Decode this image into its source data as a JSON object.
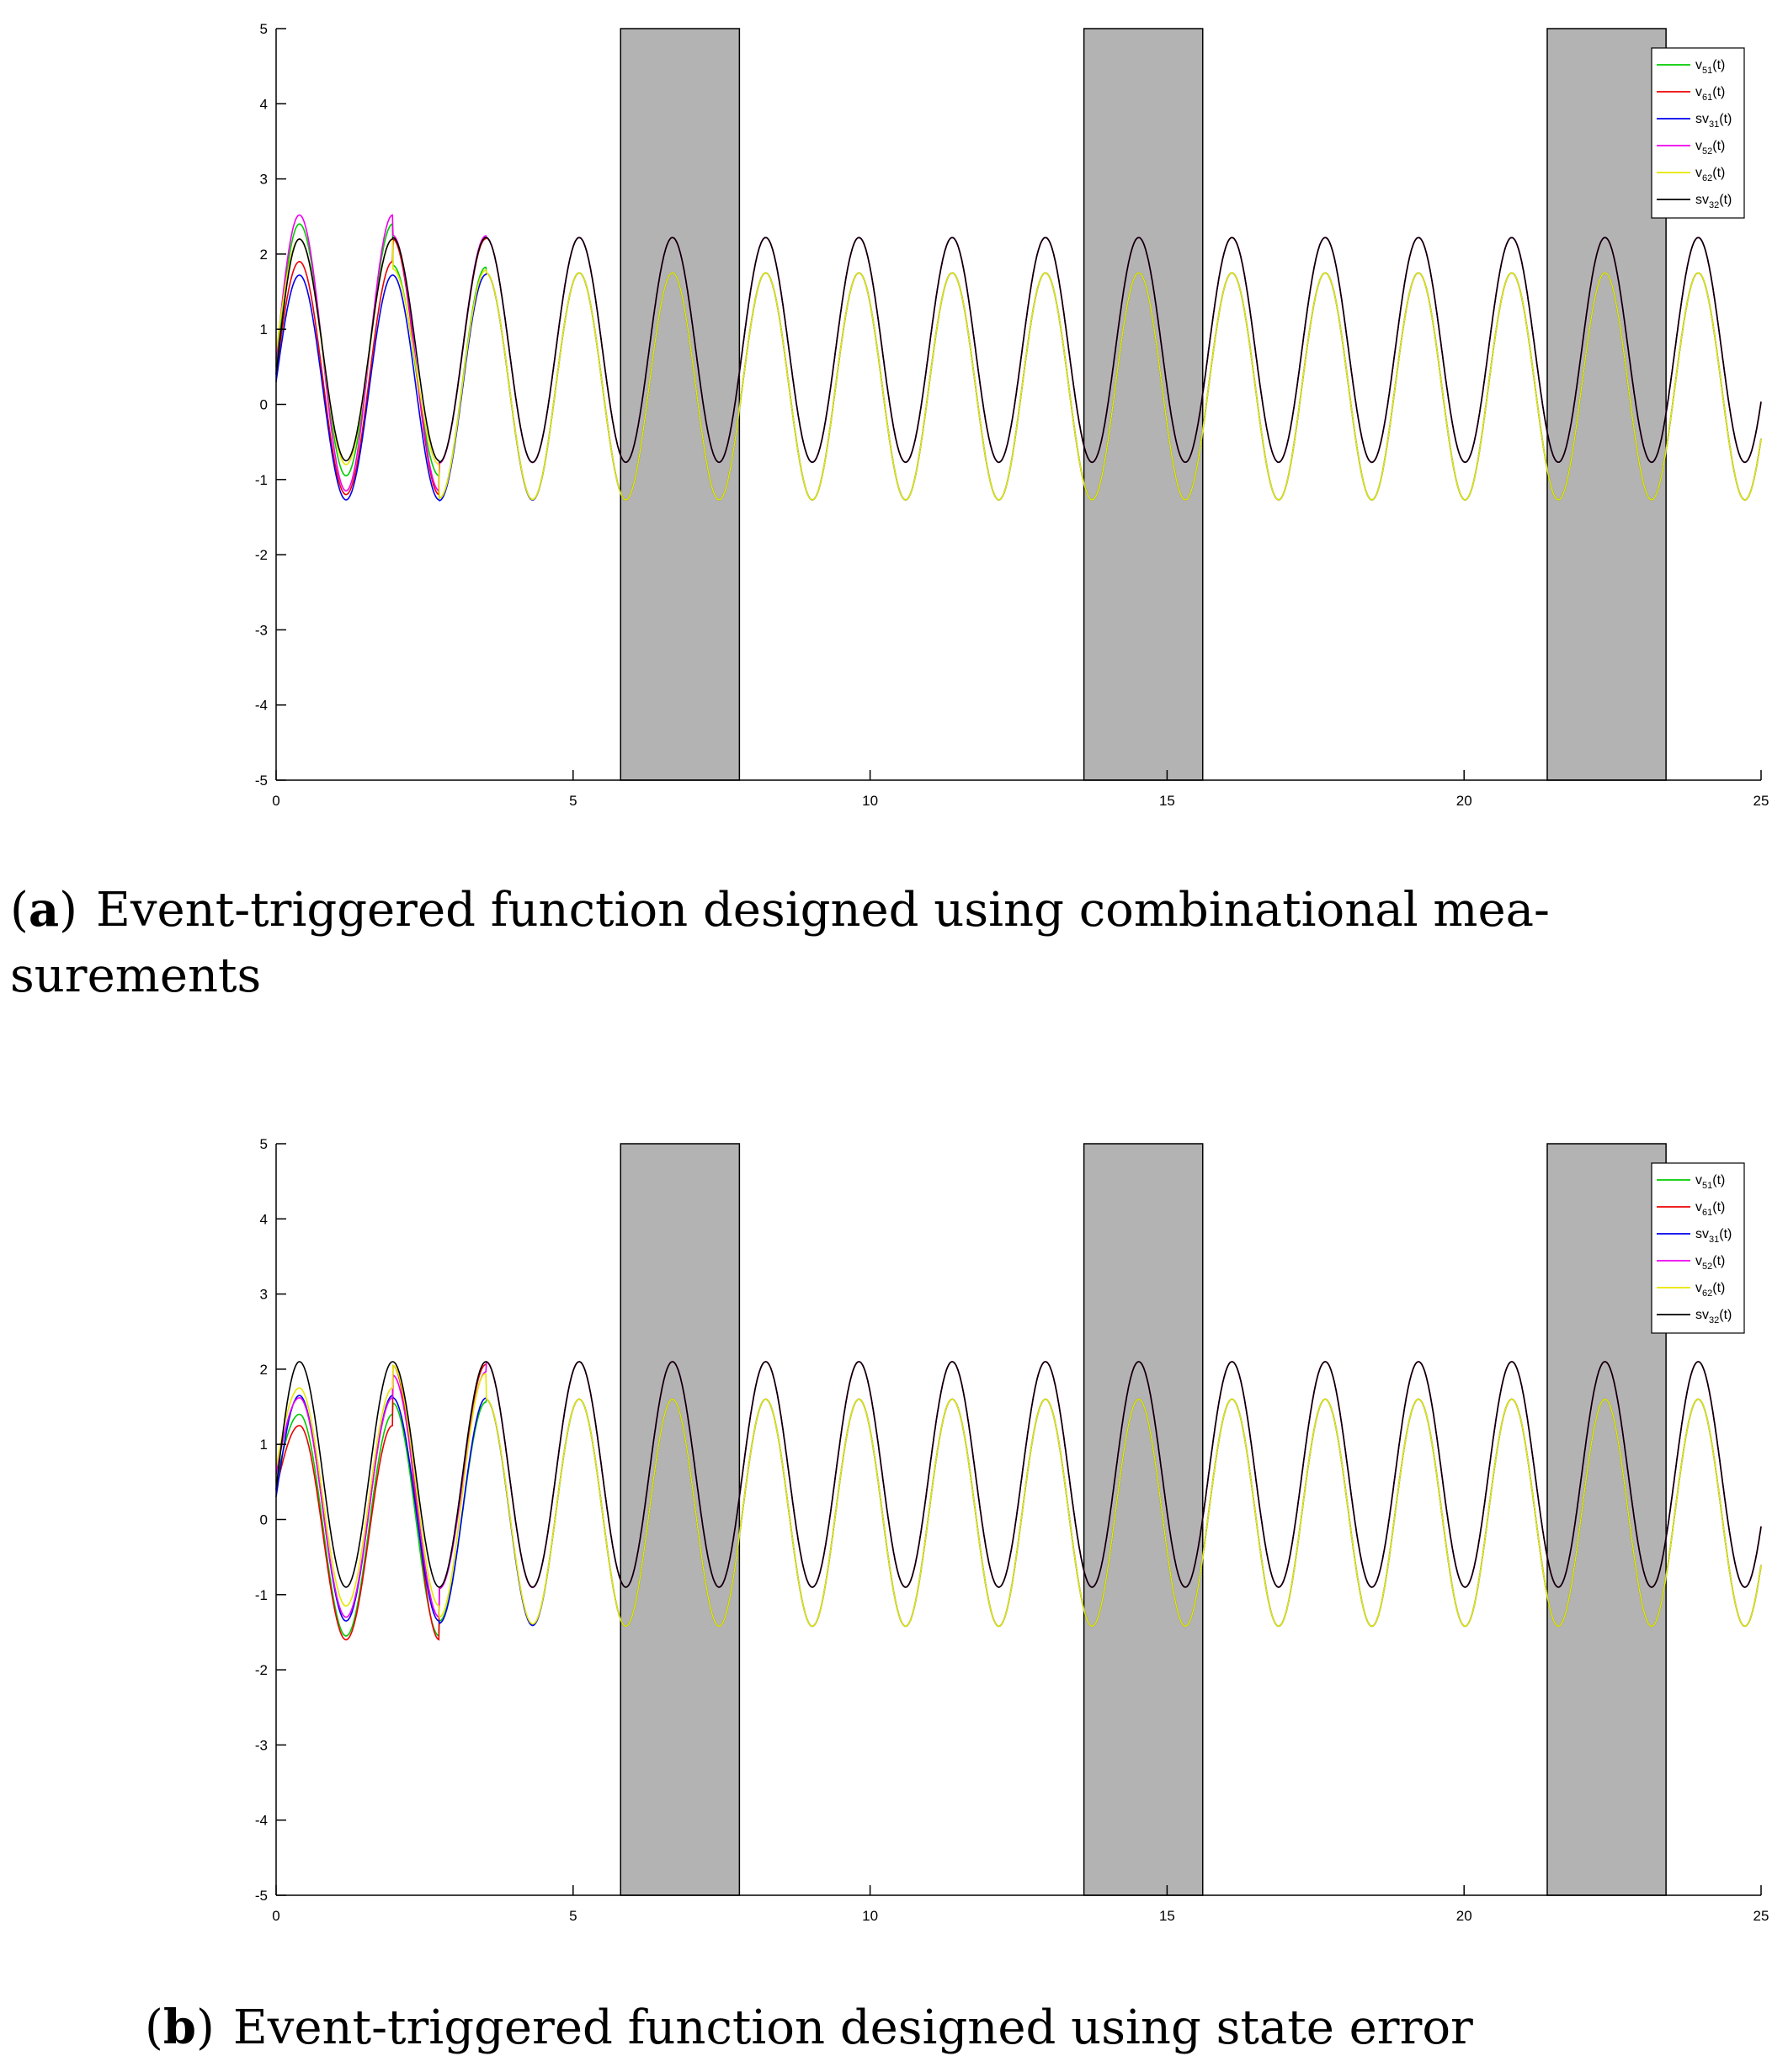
{
  "charts": [
    {
      "chart_data": {
        "type": "line",
        "xlim": [
          0,
          25
        ],
        "ylim": [
          -5,
          5
        ],
        "x_ticks": [
          "0",
          "5",
          "10",
          "15",
          "20",
          "25"
        ],
        "y_ticks": [
          "5",
          "4",
          "3",
          "2",
          "1",
          "0",
          "-1",
          "-2",
          "-3",
          "-4",
          "-5"
        ],
        "shaded_intervals": [
          [
            5.8,
            7.8
          ],
          [
            13.6,
            15.6
          ],
          [
            21.4,
            23.4
          ]
        ],
        "legend_position": "top-right",
        "period": 1.57,
        "series": [
          {
            "name": "v51(t)",
            "legend_main": "v",
            "legend_sub": "51",
            "legend_suffix": "(t)",
            "color": "#00cc00",
            "group": "blue",
            "initial": {
              "y0": 0.5,
              "peak1": 2.4,
              "trough1": -0.95,
              "peak2": 1.85,
              "trough2": -1.25
            }
          },
          {
            "name": "v61(t)",
            "legend_main": "v",
            "legend_sub": "61",
            "legend_suffix": "(t)",
            "color": "#ee0000",
            "group": "black",
            "initial": {
              "y0": 0.4,
              "peak1": 1.9,
              "trough1": -1.2,
              "peak2": 2.2,
              "trough2": -0.78
            }
          },
          {
            "name": "sv31(t)",
            "legend_main": "sv",
            "legend_sub": "31",
            "legend_suffix": "(t)",
            "color": "#0000ee",
            "group": "blue",
            "initial": {
              "y0": 0.3,
              "peak1": 1.72,
              "trough1": -1.27,
              "peak2": 1.72,
              "trough2": -1.28
            }
          },
          {
            "name": "v52(t)",
            "legend_main": "v",
            "legend_sub": "52",
            "legend_suffix": "(t)",
            "color": "#ee00ee",
            "group": "black",
            "initial": {
              "y0": 0.6,
              "peak1": 2.52,
              "trough1": -1.15,
              "peak2": 2.25,
              "trough2": -0.78
            }
          },
          {
            "name": "v62(t)",
            "legend_main": "v",
            "legend_sub": "62",
            "legend_suffix": "(t)",
            "color": "#e6e600",
            "group": "blue",
            "initial": {
              "y0": 0.7,
              "peak1": 2.2,
              "trough1": -0.8,
              "peak2": 1.8,
              "trough2": -1.25
            }
          },
          {
            "name": "sv32(t)",
            "legend_main": "sv",
            "legend_sub": "32",
            "legend_suffix": "(t)",
            "color": "#000000",
            "group": "black",
            "initial": {
              "y0": 0.4,
              "peak1": 2.2,
              "trough1": -0.75,
              "peak2": 2.22,
              "trough2": -0.77
            }
          }
        ],
        "steady": {
          "blue": {
            "max": 1.75,
            "min": -1.27
          },
          "black": {
            "max": 2.22,
            "min": -0.77
          }
        }
      },
      "caption": {
        "label": "a",
        "text": "Event-triggered function designed using combinational mea-",
        "text2": "surements"
      }
    },
    {
      "chart_data": {
        "type": "line",
        "xlim": [
          0,
          25
        ],
        "ylim": [
          -5,
          5
        ],
        "x_ticks": [
          "0",
          "5",
          "10",
          "15",
          "20",
          "25"
        ],
        "y_ticks": [
          "5",
          "4",
          "3",
          "2",
          "1",
          "0",
          "-1",
          "-2",
          "-3",
          "-4",
          "-5"
        ],
        "shaded_intervals": [
          [
            5.8,
            7.8
          ],
          [
            13.6,
            15.6
          ],
          [
            21.4,
            23.4
          ]
        ],
        "legend_position": "top-right",
        "period": 1.57,
        "series": [
          {
            "name": "v51(t)",
            "legend_main": "v",
            "legend_sub": "51",
            "legend_suffix": "(t)",
            "color": "#00cc00",
            "group": "blue",
            "initial": {
              "y0": 0.5,
              "peak1": 1.4,
              "trough1": -1.55,
              "peak2": 1.55,
              "trough2": -1.35
            }
          },
          {
            "name": "v61(t)",
            "legend_main": "v",
            "legend_sub": "61",
            "legend_suffix": "(t)",
            "color": "#ee0000",
            "group": "black",
            "initial": {
              "y0": 0.4,
              "peak1": 1.25,
              "trough1": -1.6,
              "peak2": 2.05,
              "trough2": -0.9
            }
          },
          {
            "name": "sv31(t)",
            "legend_main": "sv",
            "legend_sub": "31",
            "legend_suffix": "(t)",
            "color": "#0000ee",
            "group": "blue",
            "initial": {
              "y0": 0.3,
              "peak1": 1.65,
              "trough1": -1.35,
              "peak2": 1.62,
              "trough2": -1.38
            }
          },
          {
            "name": "v52(t)",
            "legend_main": "v",
            "legend_sub": "52",
            "legend_suffix": "(t)",
            "color": "#ee00ee",
            "group": "black",
            "initial": {
              "y0": 0.6,
              "peak1": 1.62,
              "trough1": -1.3,
              "peak2": 1.92,
              "trough2": -0.92
            }
          },
          {
            "name": "v62(t)",
            "legend_main": "v",
            "legend_sub": "62",
            "legend_suffix": "(t)",
            "color": "#e6e600",
            "group": "blue",
            "initial": {
              "y0": 0.7,
              "peak1": 1.75,
              "trough1": -1.15,
              "peak2": 2.05,
              "trough2": -1.3
            }
          },
          {
            "name": "sv32(t)",
            "legend_main": "sv",
            "legend_sub": "32",
            "legend_suffix": "(t)",
            "color": "#000000",
            "group": "black",
            "initial": {
              "y0": 0.4,
              "peak1": 2.1,
              "trough1": -0.9,
              "peak2": 2.1,
              "trough2": -0.9
            }
          }
        ],
        "steady": {
          "blue": {
            "max": 1.6,
            "min": -1.42
          },
          "black": {
            "max": 2.1,
            "min": -0.9
          }
        }
      },
      "caption": {
        "label": "b",
        "text": "Event-triggered function designed using state error",
        "text2": ""
      }
    }
  ]
}
